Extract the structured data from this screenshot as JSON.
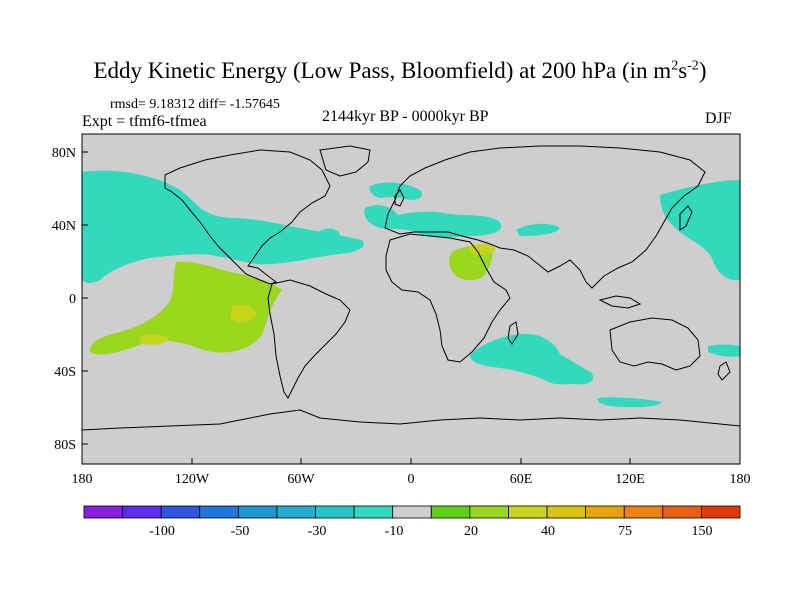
{
  "title": {
    "main": "Eddy Kinetic Energy (Low Pass, Bloomfield) at 200 hPa (in m",
    "exp1": "2",
    "mid": "s",
    "exp2": "-2",
    "close": ")"
  },
  "stats": "rmsd= 9.18312 diff= -1.57645",
  "experiment": "Expt = tfmf6-tfmea",
  "period": "2144kyr BP - 0000kyr BP",
  "season": "DJF",
  "axes": {
    "lat_labels": [
      "80N",
      "40N",
      "0",
      "40S",
      "80S"
    ],
    "lon_labels": [
      "180",
      "120W",
      "60W",
      "0",
      "60E",
      "120E",
      "180"
    ]
  },
  "colorbar": {
    "colors": [
      "#8a1ee0",
      "#5a2ee6",
      "#2f55e0",
      "#1f78d8",
      "#1e96d2",
      "#22aecf",
      "#28c4cc",
      "#33d9bd",
      "#cecece",
      "#5fd11a",
      "#9bd81d",
      "#c8d41a",
      "#dcc012",
      "#e8a40e",
      "#ea8410",
      "#e85f14",
      "#e23a12"
    ],
    "labels": [
      "-100",
      "-50",
      "-30",
      "-10",
      "20",
      "40",
      "75",
      "150"
    ]
  },
  "legend_colors": {
    "land_ocean_zero": "#cecece",
    "negative": "#33d9bd",
    "positive_light": "#9bd81d",
    "positive_strong": "#c8d41a"
  }
}
